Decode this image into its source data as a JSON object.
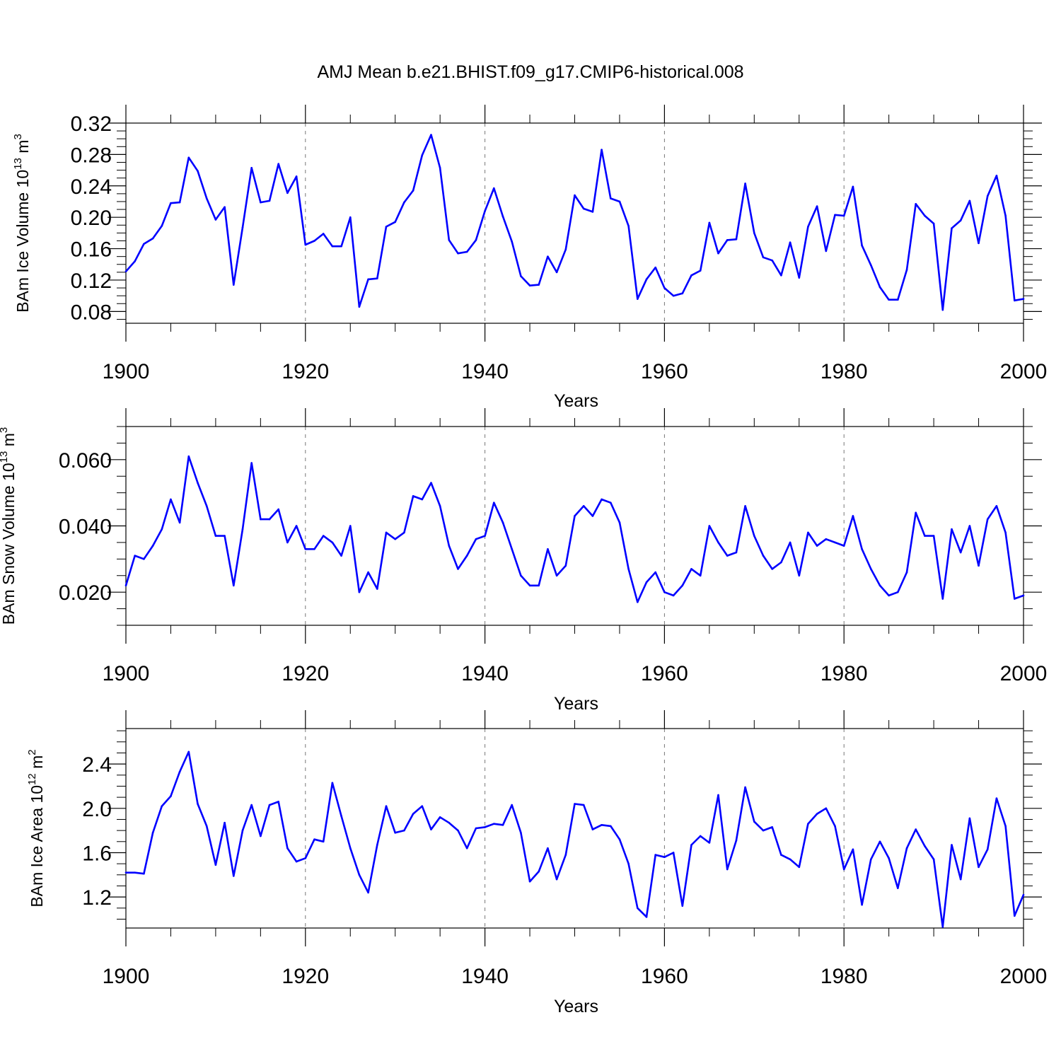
{
  "title": "AMJ Mean b.e21.BHIST.f09_g17.CMIP6-historical.008",
  "colors": {
    "series": "#0000ff",
    "axes": "#000000",
    "grid": "#777777"
  },
  "chart_data": [
    {
      "type": "line",
      "ylabel_main": "BAm Ice Volume 10",
      "ylabel_exp": "13",
      "ylabel_unit": " m",
      "ylabel_unit_exp": "3",
      "xlabel": "Years",
      "xlim": [
        1900,
        2000
      ],
      "ylim": [
        0.065,
        0.32
      ],
      "xticks": [
        "1900",
        "1920",
        "1940",
        "1960",
        "1980",
        "2000"
      ],
      "yticks": [
        "0.08",
        "0.12",
        "0.16",
        "0.20",
        "0.24",
        "0.28",
        "0.32"
      ],
      "grid": "vertical dashed",
      "x_start": 1900,
      "values": [
        0.131,
        0.144,
        0.166,
        0.173,
        0.189,
        0.218,
        0.219,
        0.276,
        0.259,
        0.224,
        0.197,
        0.213,
        0.114,
        0.187,
        0.263,
        0.219,
        0.221,
        0.268,
        0.231,
        0.252,
        0.165,
        0.17,
        0.179,
        0.163,
        0.163,
        0.2,
        0.086,
        0.121,
        0.122,
        0.188,
        0.194,
        0.219,
        0.234,
        0.279,
        0.305,
        0.263,
        0.171,
        0.154,
        0.156,
        0.171,
        0.208,
        0.237,
        0.201,
        0.169,
        0.125,
        0.113,
        0.114,
        0.15,
        0.13,
        0.159,
        0.228,
        0.211,
        0.207,
        0.286,
        0.224,
        0.22,
        0.189,
        0.096,
        0.121,
        0.136,
        0.11,
        0.1,
        0.103,
        0.126,
        0.132,
        0.193,
        0.154,
        0.171,
        0.172,
        0.243,
        0.18,
        0.149,
        0.145,
        0.126,
        0.168,
        0.123,
        0.188,
        0.214,
        0.157,
        0.203,
        0.202,
        0.239,
        0.164,
        0.139,
        0.111,
        0.095,
        0.095,
        0.133,
        0.217,
        0.202,
        0.192,
        0.082,
        0.186,
        0.196,
        0.221,
        0.167,
        0.227,
        0.253,
        0.202,
        0.094,
        0.096
      ]
    },
    {
      "type": "line",
      "ylabel_main": "BAm Snow Volume 10",
      "ylabel_exp": "13",
      "ylabel_unit": " m",
      "ylabel_unit_exp": "3",
      "xlabel": "Years",
      "xlim": [
        1900,
        2000
      ],
      "ylim": [
        0.01,
        0.07
      ],
      "xticks": [
        "1900",
        "1920",
        "1940",
        "1960",
        "1980",
        "2000"
      ],
      "yticks": [
        "0.020",
        "0.040",
        "0.060"
      ],
      "grid": "vertical dashed",
      "x_start": 1900,
      "values": [
        0.022,
        0.031,
        0.03,
        0.034,
        0.039,
        0.048,
        0.041,
        0.061,
        0.053,
        0.046,
        0.037,
        0.037,
        0.022,
        0.039,
        0.059,
        0.042,
        0.042,
        0.045,
        0.035,
        0.04,
        0.033,
        0.033,
        0.037,
        0.035,
        0.031,
        0.04,
        0.02,
        0.026,
        0.021,
        0.038,
        0.036,
        0.038,
        0.049,
        0.048,
        0.053,
        0.046,
        0.034,
        0.027,
        0.031,
        0.036,
        0.037,
        0.047,
        0.041,
        0.033,
        0.025,
        0.022,
        0.022,
        0.033,
        0.025,
        0.028,
        0.043,
        0.046,
        0.043,
        0.048,
        0.047,
        0.041,
        0.027,
        0.017,
        0.023,
        0.026,
        0.02,
        0.019,
        0.022,
        0.027,
        0.025,
        0.04,
        0.035,
        0.031,
        0.032,
        0.046,
        0.037,
        0.031,
        0.027,
        0.029,
        0.035,
        0.025,
        0.038,
        0.034,
        0.036,
        0.035,
        0.034,
        0.043,
        0.033,
        0.027,
        0.022,
        0.019,
        0.02,
        0.026,
        0.044,
        0.037,
        0.037,
        0.018,
        0.039,
        0.032,
        0.04,
        0.028,
        0.042,
        0.046,
        0.038,
        0.018,
        0.019
      ]
    },
    {
      "type": "line",
      "ylabel_main": "BAm Ice Area 10",
      "ylabel_exp": "12",
      "ylabel_unit": " m",
      "ylabel_unit_exp": "2",
      "xlabel": "Years",
      "xlim": [
        1900,
        2000
      ],
      "ylim": [
        0.92,
        2.72
      ],
      "xticks": [
        "1900",
        "1920",
        "1940",
        "1960",
        "1980",
        "2000"
      ],
      "yticks": [
        "1.2",
        "1.6",
        "2.0",
        "2.4"
      ],
      "grid": "vertical dashed",
      "x_start": 1900,
      "values": [
        1.42,
        1.42,
        1.41,
        1.78,
        2.02,
        2.11,
        2.33,
        2.51,
        2.04,
        1.84,
        1.49,
        1.87,
        1.39,
        1.8,
        2.03,
        1.75,
        2.03,
        2.06,
        1.64,
        1.52,
        1.55,
        1.72,
        1.7,
        2.23,
        1.93,
        1.64,
        1.4,
        1.24,
        1.67,
        2.02,
        1.78,
        1.8,
        1.95,
        2.02,
        1.81,
        1.92,
        1.87,
        1.8,
        1.64,
        1.82,
        1.83,
        1.86,
        1.85,
        2.03,
        1.78,
        1.34,
        1.43,
        1.64,
        1.36,
        1.58,
        2.04,
        2.03,
        1.81,
        1.85,
        1.84,
        1.72,
        1.5,
        1.1,
        1.02,
        1.58,
        1.56,
        1.6,
        1.12,
        1.67,
        1.75,
        1.69,
        2.12,
        1.45,
        1.71,
        2.19,
        1.88,
        1.8,
        1.83,
        1.58,
        1.54,
        1.47,
        1.86,
        1.95,
        2.0,
        1.84,
        1.45,
        1.63,
        1.13,
        1.54,
        1.7,
        1.55,
        1.28,
        1.64,
        1.81,
        1.66,
        1.54,
        0.93,
        1.67,
        1.36,
        1.91,
        1.47,
        1.63,
        2.09,
        1.84,
        1.03,
        1.22
      ]
    }
  ]
}
